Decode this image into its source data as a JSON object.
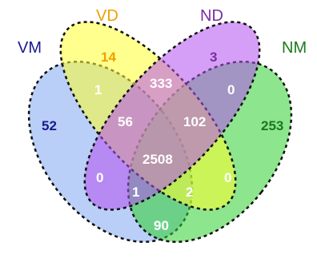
{
  "sets": {
    "VM": {
      "label": "VM",
      "color": "#1a1a8c",
      "fill": "#7fa8f0"
    },
    "VD": {
      "label": "VD",
      "color": "#f0a000",
      "fill": "#ffff30"
    },
    "ND": {
      "label": "ND",
      "color": "#7a2ea0",
      "fill": "#b450f0"
    },
    "NM": {
      "label": "NM",
      "color": "#1a7a1a",
      "fill": "#30d230"
    }
  },
  "regions": {
    "vm_only": "52",
    "vd_only": "14",
    "nd_only": "3",
    "nm_only": "253",
    "vm_vd": "1",
    "vd_nd": "333",
    "nd_nm": "0",
    "vm_vd_nd": "56",
    "vd_nd_nm": "102",
    "all_four": "2508",
    "vm_nd": "0",
    "vd_nm": "0",
    "vm_nd_nm": "1",
    "vm_vd_nm": "2",
    "vm_nm": "90"
  }
}
